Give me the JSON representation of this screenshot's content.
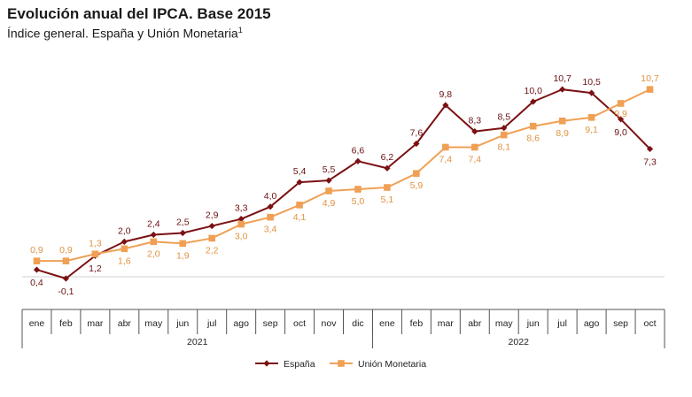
{
  "header": {
    "title": "Evolución anual del IPCA. Base 2015",
    "subtitle": "Índice general. España y Unión Monetaria",
    "footnote_mark": "1"
  },
  "chart_data": {
    "type": "line",
    "title": "Evolución anual del IPCA. Base 2015",
    "subtitle": "Índice general. España y Unión Monetaria",
    "categories": [
      "ene",
      "feb",
      "mar",
      "abr",
      "may",
      "jun",
      "jul",
      "ago",
      "sep",
      "oct",
      "nov",
      "dic",
      "ene",
      "feb",
      "mar",
      "abr",
      "may",
      "jun",
      "jul",
      "ago",
      "sep",
      "oct"
    ],
    "years": [
      {
        "label": "2021",
        "months": 12
      },
      {
        "label": "2022",
        "months": 10
      }
    ],
    "series": [
      {
        "name": "España",
        "color": "#7b1113",
        "marker": "diamond",
        "values": [
          0.4,
          -0.1,
          1.2,
          2.0,
          2.4,
          2.5,
          2.9,
          3.3,
          4.0,
          5.4,
          5.5,
          6.6,
          6.2,
          7.6,
          9.8,
          8.3,
          8.5,
          10.0,
          10.7,
          10.5,
          9.0,
          7.3
        ],
        "labels": [
          "0,4",
          "-0,1",
          "1,2",
          "2,0",
          "2,4",
          "2,5",
          "2,9",
          "3,3",
          "4,0",
          "5,4",
          "5,5",
          "6,6",
          "6,2",
          "7,6",
          "9,8",
          "8,3",
          "8,5",
          "10,0",
          "10,7",
          "10,5",
          "9,0",
          "7,3"
        ]
      },
      {
        "name": "Unión Monetaria",
        "color": "#f0a055",
        "marker": "square",
        "values": [
          0.9,
          0.9,
          1.3,
          1.6,
          2.0,
          1.9,
          2.2,
          3.0,
          3.4,
          4.1,
          4.9,
          5.0,
          5.1,
          5.9,
          7.4,
          7.4,
          8.1,
          8.6,
          8.9,
          9.1,
          9.9,
          10.7
        ],
        "labels": [
          "0,9",
          "0,9",
          "1,3",
          "1,6",
          "2,0",
          "1,9",
          "2,2",
          "3,0",
          "3,4",
          "4,1",
          "4,9",
          "5,0",
          "5,1",
          "5,9",
          "7,4",
          "7,4",
          "8,1",
          "8,6",
          "8,9",
          "9,1",
          "9,9",
          "10,7"
        ]
      }
    ],
    "legend_position": "bottom-center",
    "grid": false
  }
}
